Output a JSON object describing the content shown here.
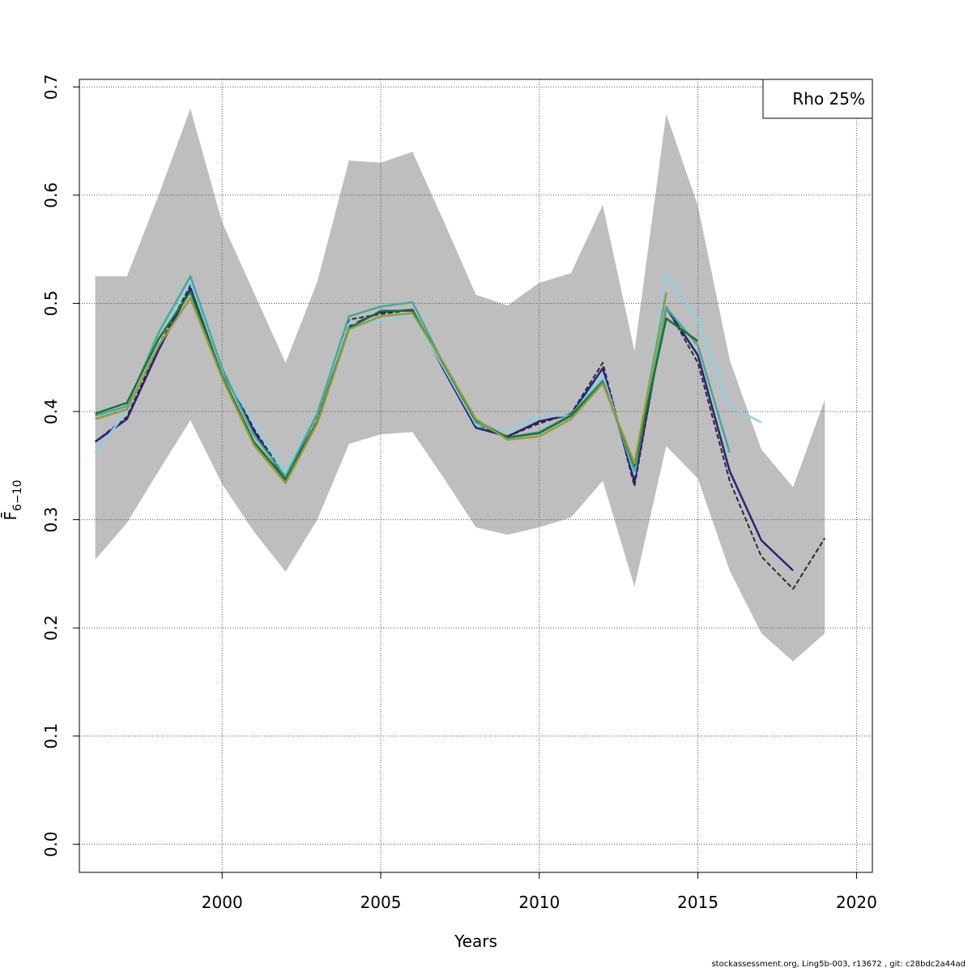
{
  "chart_data": {
    "type": "line",
    "xlabel": "Years",
    "ylabel": "F̄",
    "ylabel_sub": "6−10",
    "xlim": [
      1995.5,
      2020.5
    ],
    "ylim": [
      -0.026,
      0.707
    ],
    "xticks": [
      2000,
      2005,
      2010,
      2015,
      2020
    ],
    "yticks": [
      0.0,
      0.1,
      0.2,
      0.3,
      0.4,
      0.5,
      0.6,
      0.7
    ],
    "ytick_labels": [
      "0.0",
      "0.1",
      "0.2",
      "0.3",
      "0.4",
      "0.5",
      "0.6",
      "0.7"
    ],
    "grid": true,
    "legend": {
      "position": "top-right",
      "text": "Rho 25%"
    },
    "band": {
      "x": [
        1996,
        1997,
        1998,
        1999,
        2000,
        2001,
        2002,
        2003,
        2004,
        2005,
        2006,
        2007,
        2008,
        2009,
        2010,
        2011,
        2012,
        2013,
        2014,
        2015,
        2016,
        2017,
        2018,
        2019
      ],
      "upper": [
        0.525,
        0.525,
        0.6,
        0.68,
        0.575,
        0.51,
        0.445,
        0.52,
        0.632,
        0.63,
        0.64,
        0.575,
        0.508,
        0.498,
        0.519,
        0.528,
        0.591,
        0.456,
        0.675,
        0.59,
        0.448,
        0.365,
        0.33,
        0.411
      ],
      "lower": [
        0.263,
        0.297,
        0.345,
        0.392,
        0.333,
        0.289,
        0.252,
        0.3,
        0.37,
        0.379,
        0.381,
        0.338,
        0.293,
        0.286,
        0.293,
        0.302,
        0.336,
        0.238,
        0.368,
        0.338,
        0.253,
        0.195,
        0.169,
        0.195
      ],
      "color": "#bebebe"
    },
    "series": [
      {
        "color": "#2b2b2b",
        "dashed": true,
        "width": 2,
        "x": [
          1996,
          1997,
          1998,
          1999,
          2000,
          2001,
          2002,
          2003,
          2004,
          2005,
          2006,
          2007,
          2008,
          2009,
          2010,
          2011,
          2012,
          2013,
          2014,
          2015,
          2016,
          2017,
          2018,
          2019
        ],
        "values": [
          0.372,
          0.395,
          0.46,
          0.517,
          0.44,
          0.384,
          0.339,
          0.397,
          0.485,
          0.49,
          0.494,
          0.44,
          0.388,
          0.377,
          0.389,
          0.398,
          0.445,
          0.331,
          0.497,
          0.445,
          0.336,
          0.266,
          0.236,
          0.283
        ]
      },
      {
        "color": "#2e1f7a",
        "dashed": false,
        "width": 2.5,
        "x": [
          1996,
          1997,
          1998,
          1999,
          2000,
          2001,
          2002,
          2003,
          2004,
          2005,
          2006,
          2007,
          2008,
          2009,
          2010,
          2011,
          2012,
          2013,
          2014,
          2015,
          2016,
          2017,
          2018
        ],
        "values": [
          0.372,
          0.393,
          0.457,
          0.514,
          0.438,
          0.382,
          0.337,
          0.399,
          0.479,
          0.492,
          0.494,
          0.438,
          0.385,
          0.377,
          0.391,
          0.397,
          0.44,
          0.335,
          0.496,
          0.452,
          0.345,
          0.281,
          0.253
        ]
      },
      {
        "color": "#8dcfe6",
        "dashed": false,
        "width": 2.5,
        "x": [
          1996,
          1997,
          1998,
          1999,
          2000,
          2001,
          2002,
          2003,
          2004,
          2005,
          2006,
          2007,
          2008,
          2009,
          2010,
          2011,
          2012,
          2013,
          2014,
          2015,
          2016,
          2017
        ],
        "values": [
          0.362,
          0.4,
          0.465,
          0.52,
          0.438,
          0.389,
          0.344,
          0.399,
          0.481,
          0.484,
          0.49,
          0.44,
          0.388,
          0.381,
          0.396,
          0.396,
          0.434,
          0.342,
          0.527,
          0.485,
          0.405,
          0.39
        ]
      },
      {
        "color": "#44aa99",
        "dashed": false,
        "width": 2.5,
        "x": [
          1996,
          1997,
          1998,
          1999,
          2000,
          2001,
          2002,
          2003,
          2004,
          2005,
          2006,
          2007,
          2008,
          2009,
          2010,
          2011,
          2012,
          2013,
          2014,
          2015,
          2016
        ],
        "values": [
          0.396,
          0.405,
          0.473,
          0.525,
          0.44,
          0.378,
          0.34,
          0.398,
          0.488,
          0.497,
          0.501,
          0.443,
          0.39,
          0.376,
          0.381,
          0.397,
          0.429,
          0.345,
          0.496,
          0.461,
          0.362
        ]
      },
      {
        "color": "#117733",
        "dashed": false,
        "width": 2.5,
        "x": [
          1996,
          1997,
          1998,
          1999,
          2000,
          2001,
          2002,
          2003,
          2004,
          2005,
          2006,
          2007,
          2008,
          2009,
          2010,
          2011,
          2012,
          2013,
          2014,
          2015
        ],
        "values": [
          0.398,
          0.408,
          0.467,
          0.511,
          0.433,
          0.372,
          0.337,
          0.391,
          0.477,
          0.493,
          0.493,
          0.443,
          0.392,
          0.376,
          0.38,
          0.396,
          0.427,
          0.35,
          0.486,
          0.465
        ]
      },
      {
        "color": "#999933",
        "dashed": false,
        "width": 2.5,
        "x": [
          1996,
          1997,
          1998,
          1999,
          2000,
          2001,
          2002,
          2003,
          2004,
          2005,
          2006,
          2007,
          2008,
          2009,
          2010,
          2011,
          2012,
          2013,
          2014
        ],
        "values": [
          0.393,
          0.402,
          0.461,
          0.505,
          0.431,
          0.369,
          0.334,
          0.389,
          0.476,
          0.488,
          0.491,
          0.444,
          0.393,
          0.374,
          0.377,
          0.393,
          0.426,
          0.352,
          0.51
        ]
      }
    ]
  },
  "footer": "stockassessment.org, Ling5b-003, r13672 , git: c28bdc2a44ad"
}
